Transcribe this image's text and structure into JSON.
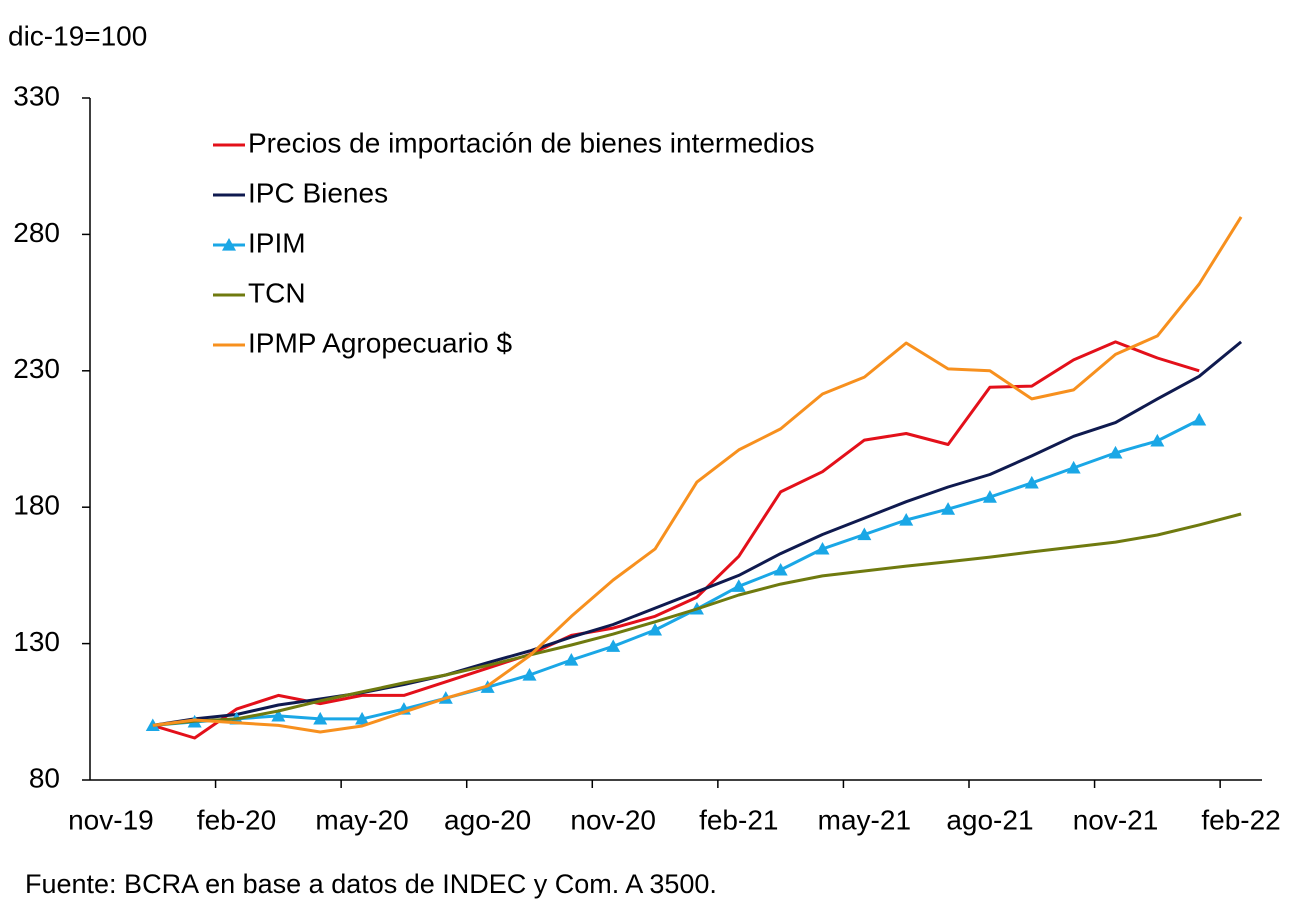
{
  "chart_data": {
    "type": "line",
    "subtitle": "dic-19=100",
    "source": "Fuente: BCRA en base a datos de INDEC y Com. A 3500.",
    "categories": [
      "nov-19",
      null,
      null,
      "feb-20",
      null,
      null,
      "may-20",
      null,
      null,
      "ago-20",
      null,
      null,
      "nov-20",
      null,
      null,
      "feb-21",
      null,
      null,
      "may-21",
      null,
      null,
      "ago-21",
      null,
      null,
      "nov-21",
      null,
      null,
      "feb-22"
    ],
    "ylim": [
      80,
      330
    ],
    "yticks": [
      80,
      130,
      180,
      230,
      280,
      330
    ],
    "series": [
      {
        "name": "Precios de importación de bienes intermedios",
        "color": "#e3101a",
        "values": [
          null,
          100,
          95.4,
          106,
          111,
          108,
          111,
          111,
          116,
          121,
          126,
          133,
          135.7,
          140,
          147,
          162,
          185.6,
          193,
          204.6,
          207,
          203,
          224,
          224.4,
          234,
          240.6,
          234.7,
          230,
          null
        ]
      },
      {
        "name": "IPC Bienes",
        "color": "#0f1a4f",
        "values": [
          null,
          100,
          102.4,
          104,
          107.5,
          109.7,
          112,
          115,
          118.5,
          123,
          127.3,
          132.4,
          137,
          143,
          149,
          155,
          163,
          170,
          176,
          182,
          187.4,
          192,
          198.8,
          206,
          211,
          219.7,
          228,
          240.6
        ]
      },
      {
        "name": "IPIM",
        "color": "#1aa7e6",
        "marker": "triangle",
        "values": [
          null,
          100,
          101.3,
          102.4,
          103.5,
          102.4,
          102.4,
          106,
          110,
          114,
          118.5,
          124,
          129,
          135,
          142.7,
          151,
          157,
          164.7,
          170,
          175.3,
          179.3,
          183.7,
          188.9,
          194.4,
          199.9,
          204.3,
          212,
          null
        ]
      },
      {
        "name": "TCN",
        "color": "#6f7a0f",
        "values": [
          null,
          100,
          101.6,
          102.4,
          105.3,
          109,
          112.3,
          115.6,
          118.5,
          122,
          125.8,
          129.5,
          133.5,
          138,
          142.7,
          147.8,
          151.8,
          154.8,
          156.6,
          158.4,
          160,
          161.7,
          163.6,
          165.4,
          167.2,
          169.8,
          173.5,
          177.5
        ]
      },
      {
        "name": "IPMP Agropecuario $",
        "color": "#f7901e",
        "values": [
          null,
          100,
          102,
          101,
          100,
          97.6,
          99.8,
          104.9,
          110,
          114.5,
          125.5,
          140,
          153.3,
          164.7,
          189.2,
          201,
          208.7,
          221.5,
          227.7,
          240.2,
          230.7,
          230,
          219.7,
          223,
          236,
          242.8,
          261.8,
          286.4
        ]
      }
    ]
  }
}
